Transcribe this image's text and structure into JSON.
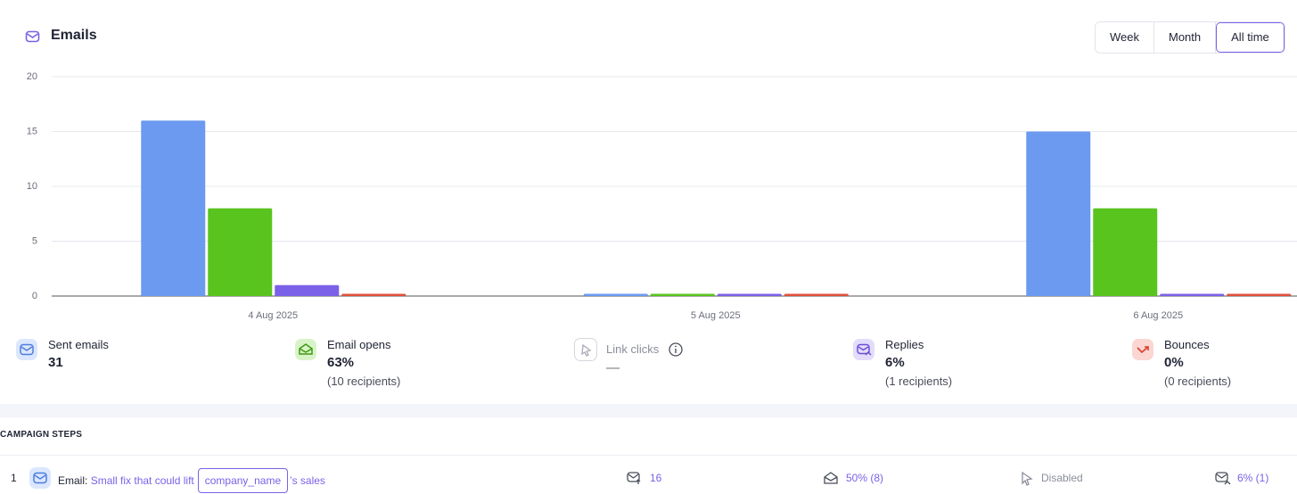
{
  "header": {
    "title": "Emails",
    "tabs": [
      "Week",
      "Month",
      "All time"
    ]
  },
  "chart_data": {
    "type": "bar",
    "categories": [
      "4 Aug 2025",
      "5 Aug 2025",
      "6 Aug 2025"
    ],
    "series": [
      {
        "name": "Sent emails",
        "color": "#6b9af0",
        "values": [
          16,
          0,
          15
        ]
      },
      {
        "name": "Email opens",
        "color": "#5ac41e",
        "values": [
          8,
          0,
          8
        ]
      },
      {
        "name": "Replies",
        "color": "#7b61e8",
        "values": [
          1,
          0,
          0
        ]
      },
      {
        "name": "Bounces",
        "color": "#e0503c",
        "values": [
          0,
          0,
          0
        ]
      }
    ],
    "ylim": [
      0,
      20
    ],
    "yticks": [
      0,
      5,
      10,
      15,
      20
    ],
    "grid": true
  },
  "stats": {
    "sent_emails": {
      "value": 31
    },
    "email_opens": {
      "value": "63%",
      "note": "(10 recipients)"
    },
    "link_clicks": {
      "label": "Link clicks",
      "value": "—"
    },
    "replies": {
      "value": "6%",
      "note": "(1 recipients)"
    },
    "bounces": {
      "value": "0%",
      "note": "(0 recipients)"
    }
  },
  "campaign_steps": {
    "heading": "CAMPAIGN STEPS",
    "rows": [
      {
        "number": "1",
        "kind": "Email:",
        "subject_start": "Small fix that could lift",
        "variable": "company_name",
        "subject_end": "’s sales",
        "sent": "16",
        "opens": "50% (8)",
        "clicks": "Disabled",
        "replies": "6% (1)"
      }
    ]
  }
}
